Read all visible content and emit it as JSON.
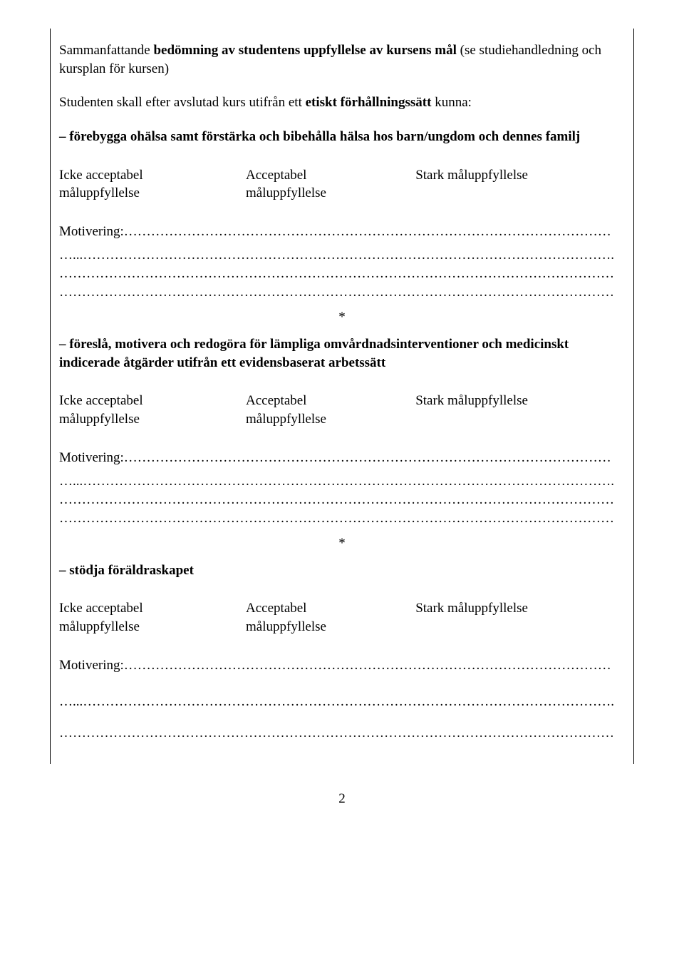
{
  "title": {
    "prefix": "Sammanfattande ",
    "bold1": "bedömning av studentens uppfyllelse av kursens mål ",
    "suffix1": "(se studiehandledning och kursplan för kursen)"
  },
  "intro": {
    "prefix": "Studenten skall efter avslutad kurs utifrån ett ",
    "bold": "etiskt förhållningssätt ",
    "suffix": "kunna:"
  },
  "goals": [
    {
      "text": "– förebygga ohälsa samt förstärka och bibehålla hälsa hos barn/ungdom och dennes familj"
    },
    {
      "text": "– föreslå, motivera och redogöra för lämpliga omvårdnadsinterventioner och medicinskt indicerade åtgärder utifrån ett evidensbaserat arbetssätt"
    },
    {
      "text": "– stödja föräldraskapet"
    }
  ],
  "rating": {
    "col1_line1": "Icke acceptabel",
    "col1_line2": "måluppfyllelse",
    "col2_line1": "Acceptabel",
    "col2_line2": "måluppfyllelse",
    "col3_line1": "Stark måluppfyllelse"
  },
  "motivation_label": "Motivering:",
  "asterisk": "*",
  "page_number": "2"
}
